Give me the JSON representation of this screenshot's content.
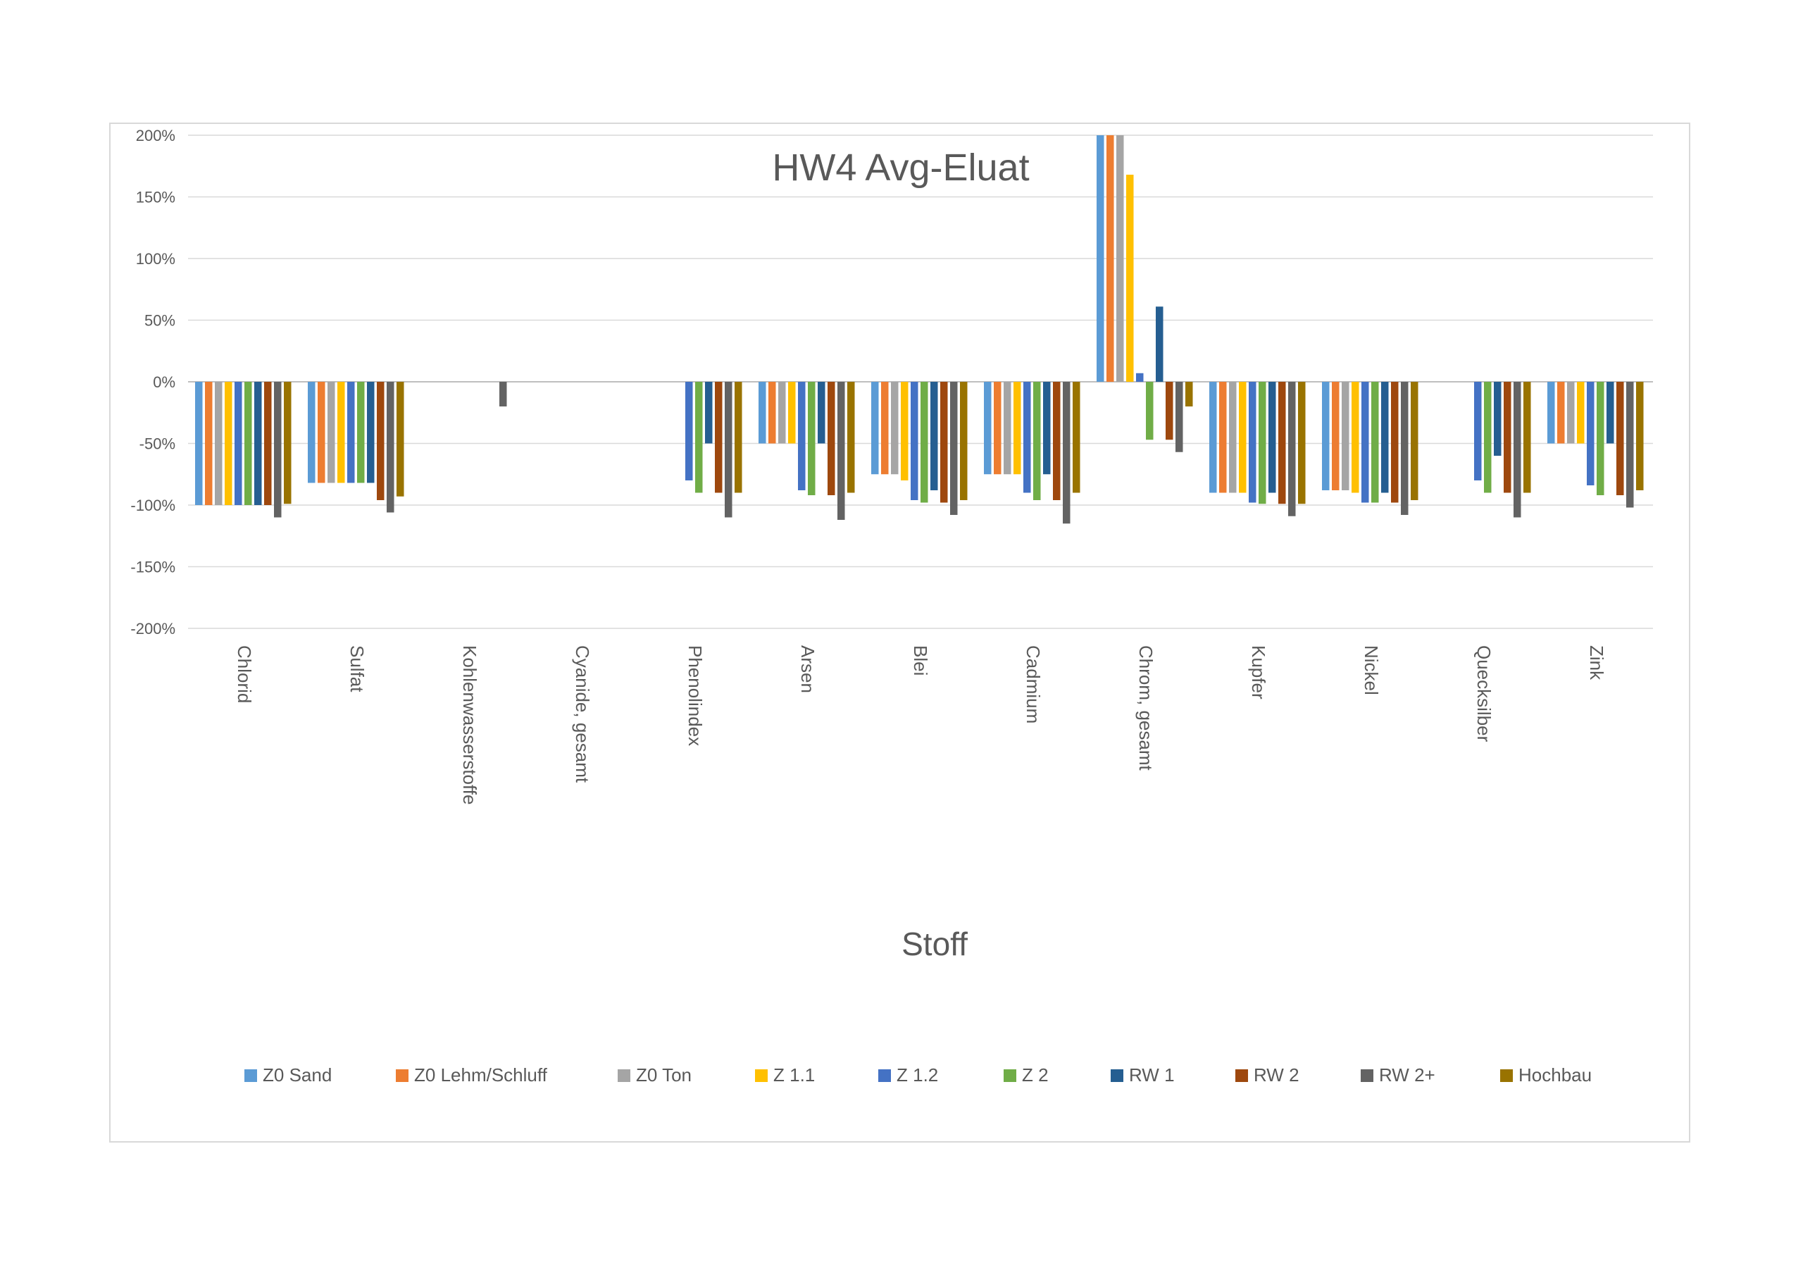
{
  "chart_data": {
    "type": "bar",
    "title": "HW4 Avg-Eluat",
    "xlabel": "Stoff",
    "ylabel": "",
    "ylim": [
      -200,
      200
    ],
    "yticks": [
      "200%",
      "150%",
      "100%",
      "50%",
      "0%",
      "-50%",
      "-100%",
      "-150%",
      "-200%"
    ],
    "yticks_values": [
      200,
      150,
      100,
      50,
      0,
      -50,
      -100,
      -150,
      -200
    ],
    "grid": true,
    "legend_position": "bottom",
    "categories": [
      "Chlorid",
      "Sulfat",
      "Kohlenwasserstoffe",
      "Cyanide, gesamt",
      "Phenolindex",
      "Arsen",
      "Blei",
      "Cadmium",
      "Chrom, gesamt",
      "Kupfer",
      "Nickel",
      "Quecksilber",
      "Zink"
    ],
    "series": [
      {
        "name": "Z0 Sand",
        "color": "#5b9bd5",
        "values": [
          -100,
          -82,
          null,
          null,
          null,
          -50,
          -75,
          -75,
          200,
          -90,
          -88,
          null,
          -50
        ]
      },
      {
        "name": "Z0 Lehm/Schluff",
        "color": "#ed7d31",
        "values": [
          -100,
          -82,
          null,
          null,
          null,
          -50,
          -75,
          -75,
          200,
          -90,
          -88,
          null,
          -50
        ]
      },
      {
        "name": "Z0 Ton",
        "color": "#a5a5a5",
        "values": [
          -100,
          -82,
          null,
          null,
          null,
          -50,
          -75,
          -75,
          200,
          -90,
          -88,
          null,
          -50
        ]
      },
      {
        "name": "Z 1.1",
        "color": "#ffc000",
        "values": [
          -100,
          -82,
          null,
          null,
          null,
          -50,
          -80,
          -75,
          168,
          -90,
          -90,
          null,
          -50
        ]
      },
      {
        "name": "Z 1.2",
        "color": "#4472c4",
        "values": [
          -100,
          -82,
          null,
          null,
          -80,
          -88,
          -96,
          -90,
          7,
          -98,
          -98,
          -80,
          -84
        ]
      },
      {
        "name": "Z 2",
        "color": "#70ad47",
        "values": [
          -100,
          -82,
          null,
          null,
          -90,
          -92,
          -98,
          -96,
          -47,
          -99,
          -98,
          -90,
          -92
        ]
      },
      {
        "name": "RW 1",
        "color": "#255e91",
        "values": [
          -100,
          -82,
          null,
          null,
          -50,
          -50,
          -88,
          -75,
          61,
          -90,
          -90,
          -60,
          -50
        ]
      },
      {
        "name": "RW 2",
        "color": "#9e480e",
        "values": [
          -100,
          -96,
          null,
          null,
          -90,
          -92,
          -98,
          -96,
          -47,
          -99,
          -98,
          -90,
          -92
        ]
      },
      {
        "name": "RW 2+",
        "color": "#636363",
        "values": [
          -110,
          -106,
          -20,
          null,
          -110,
          -112,
          -108,
          -115,
          -57,
          -109,
          -108,
          -110,
          -102
        ]
      },
      {
        "name": "Hochbau",
        "color": "#997300",
        "values": [
          -99,
          -93,
          null,
          null,
          -90,
          -90,
          -96,
          -90,
          -20,
          -99,
          -96,
          -90,
          -88
        ]
      }
    ]
  }
}
